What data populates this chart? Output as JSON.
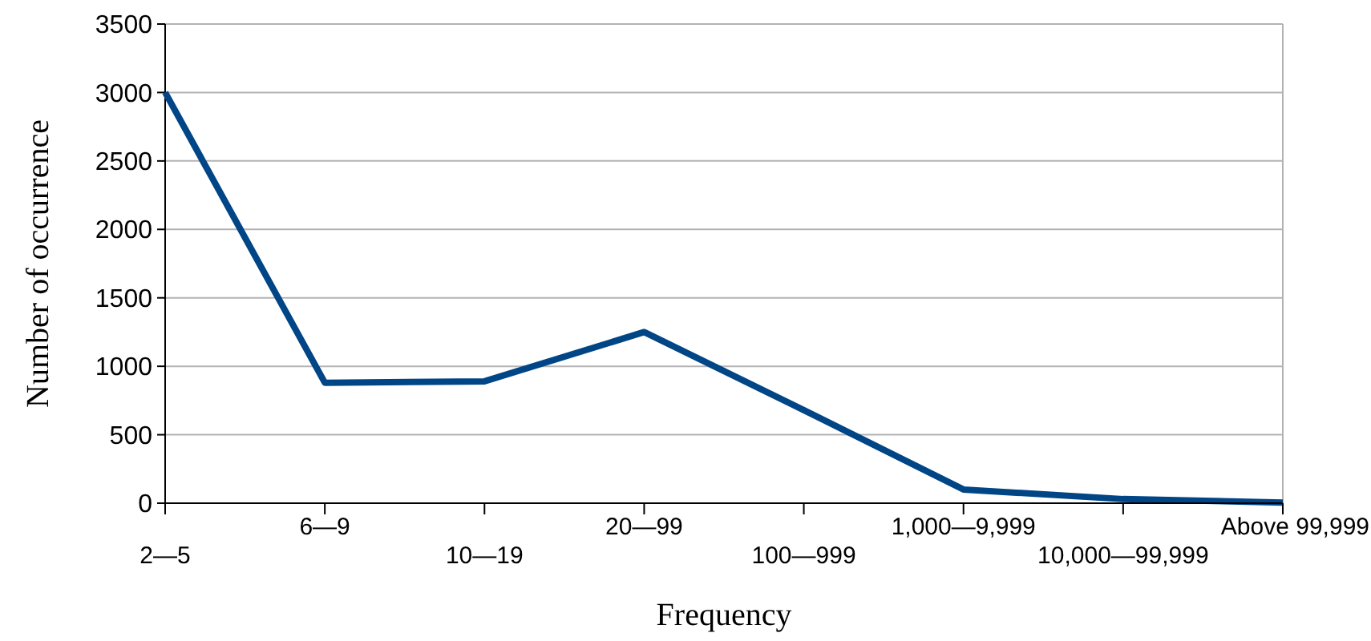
{
  "chart_data": {
    "type": "line",
    "xlabel": "Frequency",
    "ylabel": "Number of occurrence",
    "categories": [
      "2—5",
      "6—9",
      "10—19",
      "20—99",
      "100—999",
      "1,000—9,999",
      "10,000—99,999",
      "Above 99,999"
    ],
    "series": [
      {
        "color": "#004586",
        "values": [
          3000,
          880,
          890,
          1250,
          680,
          100,
          30,
          5
        ]
      }
    ],
    "ylim": [
      0,
      3500
    ],
    "yticks": [
      0,
      500,
      1000,
      1500,
      2000,
      2500,
      3000,
      3500
    ],
    "grid": "y",
    "marker": "none",
    "line_style": "solid"
  }
}
